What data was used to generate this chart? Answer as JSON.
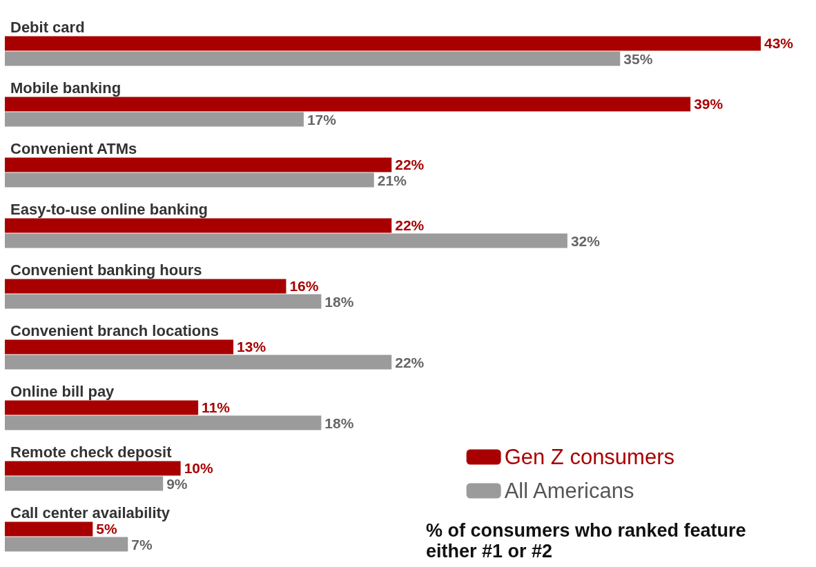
{
  "chart_data": {
    "type": "bar",
    "orientation": "horizontal",
    "categories": [
      "Debit card",
      "Mobile banking",
      "Convenient ATMs",
      "Easy-to-use online banking",
      "Convenient banking hours",
      "Convenient branch locations",
      "Online bill pay",
      "Remote check deposit",
      "Call center availability"
    ],
    "series": [
      {
        "name": "Gen Z consumers",
        "color": "#a80000",
        "values": [
          43,
          39,
          22,
          22,
          16,
          13,
          11,
          10,
          5
        ],
        "value_labels": [
          "43%",
          "39%",
          "22%",
          "22%",
          "16%",
          "13%",
          "11%",
          "10%",
          "5%"
        ]
      },
      {
        "name": "All Americans",
        "color": "#9b9b9b",
        "values": [
          35,
          17,
          21,
          32,
          18,
          22,
          18,
          9,
          7
        ],
        "value_labels": [
          "35%",
          "17%",
          "21%",
          "32%",
          "18%",
          "22%",
          "18%",
          "9%",
          "7%"
        ]
      }
    ],
    "legend": "bottom right",
    "annotations": [
      "% of consumers who ranked feature either #1 or #2"
    ]
  }
}
